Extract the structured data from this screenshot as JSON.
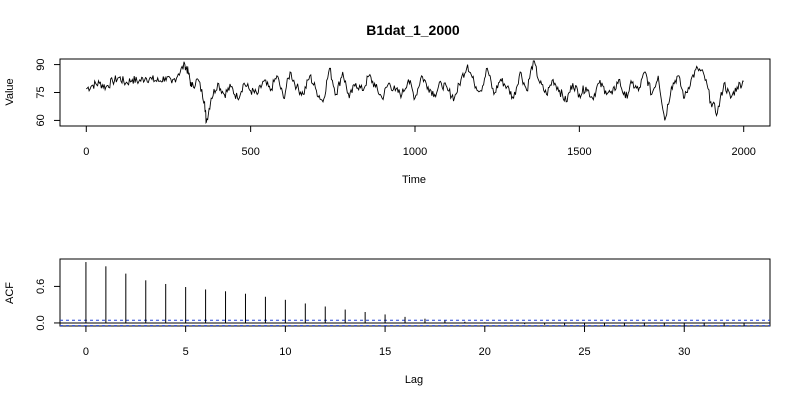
{
  "chart_data": [
    {
      "type": "line",
      "title": "B1dat_1_2000",
      "xlabel": "Time",
      "ylabel": "Value",
      "xlim": [
        -80,
        2080
      ],
      "ylim": [
        57,
        93
      ],
      "xticks": [
        0,
        500,
        1000,
        1500,
        2000
      ],
      "yticks": [
        60,
        75,
        90
      ],
      "xtick_labels": [
        "0",
        "500",
        "1000",
        "1500",
        "2000"
      ],
      "ytick_labels": [
        "60",
        "75",
        "90"
      ],
      "series": [
        {
          "x": [
            0,
            20,
            40,
            60,
            80,
            100,
            120,
            140,
            160,
            180,
            200,
            220,
            240,
            260,
            280,
            300,
            310,
            320,
            340,
            360,
            365,
            380,
            400,
            420,
            440,
            460,
            480,
            500,
            520,
            540,
            560,
            580,
            600,
            620,
            640,
            660,
            680,
            700,
            720,
            740,
            760,
            780,
            800,
            820,
            840,
            860,
            880,
            900,
            920,
            940,
            960,
            980,
            1000,
            1020,
            1040,
            1060,
            1080,
            1100,
            1120,
            1140,
            1160,
            1180,
            1200,
            1220,
            1240,
            1260,
            1280,
            1300,
            1320,
            1340,
            1360,
            1380,
            1400,
            1420,
            1440,
            1460,
            1480,
            1500,
            1520,
            1540,
            1560,
            1580,
            1600,
            1620,
            1640,
            1660,
            1680,
            1700,
            1720,
            1740,
            1760,
            1780,
            1800,
            1820,
            1840,
            1860,
            1880,
            1900,
            1920,
            1940,
            1960,
            1980,
            2000
          ],
          "y": [
            77,
            79,
            80,
            78,
            81,
            83,
            80,
            82,
            81,
            83,
            82,
            81,
            83,
            80,
            85,
            90,
            86,
            78,
            82,
            70,
            59,
            72,
            80,
            74,
            78,
            72,
            80,
            76,
            74,
            81,
            76,
            84,
            72,
            86,
            78,
            74,
            84,
            76,
            70,
            88,
            74,
            86,
            72,
            80,
            76,
            84,
            78,
            72,
            80,
            76,
            74,
            82,
            72,
            84,
            78,
            74,
            80,
            76,
            72,
            82,
            90,
            80,
            76,
            88,
            74,
            82,
            78,
            72,
            86,
            76,
            92,
            80,
            74,
            82,
            76,
            70,
            80,
            74,
            78,
            72,
            80,
            76,
            74,
            82,
            72,
            80,
            76,
            86,
            74,
            84,
            60,
            78,
            84,
            72,
            82,
            88,
            84,
            70,
            64,
            80,
            72,
            78,
            81
          ]
        }
      ]
    },
    {
      "type": "bar",
      "title": "",
      "xlabel": "Lag",
      "ylabel": "ACF",
      "xlim": [
        -1.3,
        34.3
      ],
      "ylim": [
        -0.05,
        1.05
      ],
      "xticks": [
        0,
        5,
        10,
        15,
        20,
        25,
        30
      ],
      "yticks": [
        0.0,
        0.6
      ],
      "xtick_labels": [
        "0",
        "5",
        "10",
        "15",
        "20",
        "25",
        "30"
      ],
      "ytick_labels": [
        "0.0",
        "0.6"
      ],
      "confidence_bound": 0.044,
      "confidence_color": "#1f3fd6",
      "lags": [
        0,
        1,
        2,
        3,
        4,
        5,
        6,
        7,
        8,
        9,
        10,
        11,
        12,
        13,
        14,
        15,
        16,
        17,
        18,
        19,
        20,
        21,
        22,
        23,
        24,
        25,
        26,
        27,
        28,
        29,
        30,
        31,
        32,
        33
      ],
      "values": [
        1.0,
        0.93,
        0.81,
        0.7,
        0.64,
        0.59,
        0.55,
        0.52,
        0.48,
        0.43,
        0.38,
        0.32,
        0.27,
        0.22,
        0.18,
        0.14,
        0.1,
        0.07,
        0.04,
        0.02,
        0.01,
        -0.01,
        -0.02,
        -0.03,
        -0.04,
        -0.04,
        -0.05,
        -0.05,
        -0.05,
        -0.05,
        -0.05,
        -0.05,
        -0.05,
        -0.05
      ]
    }
  ]
}
